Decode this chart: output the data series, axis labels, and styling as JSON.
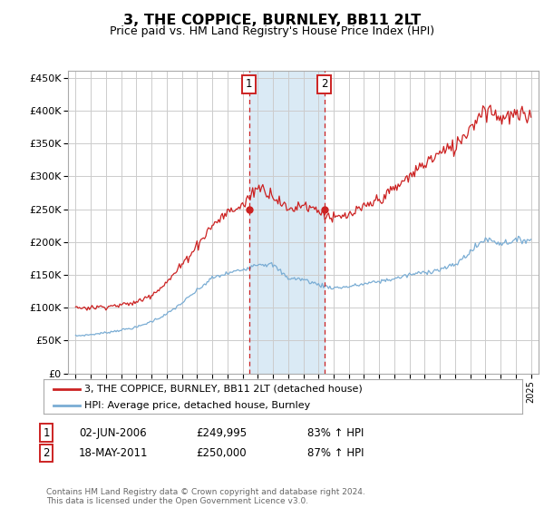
{
  "title": "3, THE COPPICE, BURNLEY, BB11 2LT",
  "subtitle": "Price paid vs. HM Land Registry's House Price Index (HPI)",
  "hpi_color": "#7aadd4",
  "price_color": "#cc2222",
  "point1_date_x": 2006.42,
  "point1_price": 249995,
  "point2_date_x": 2011.38,
  "point2_price": 250000,
  "shade_start": 2006.42,
  "shade_end": 2011.38,
  "shade_color": "#daeaf5",
  "ylim": [
    0,
    460000
  ],
  "xlim": [
    1994.5,
    2025.5
  ],
  "yticks": [
    0,
    50000,
    100000,
    150000,
    200000,
    250000,
    300000,
    350000,
    400000,
    450000
  ],
  "ytick_labels": [
    "£0",
    "£50K",
    "£100K",
    "£150K",
    "£200K",
    "£250K",
    "£300K",
    "£350K",
    "£400K",
    "£450K"
  ],
  "xtick_years": [
    1995,
    1996,
    1997,
    1998,
    1999,
    2000,
    2001,
    2002,
    2003,
    2004,
    2005,
    2006,
    2007,
    2008,
    2009,
    2010,
    2011,
    2012,
    2013,
    2014,
    2015,
    2016,
    2017,
    2018,
    2019,
    2020,
    2021,
    2022,
    2023,
    2024,
    2025
  ],
  "legend_label_price": "3, THE COPPICE, BURNLEY, BB11 2LT (detached house)",
  "legend_label_hpi": "HPI: Average price, detached house, Burnley",
  "annotation1_label": "1",
  "annotation1_date": "02-JUN-2006",
  "annotation1_price": "£249,995",
  "annotation1_hpi": "83% ↑ HPI",
  "annotation2_label": "2",
  "annotation2_date": "18-MAY-2011",
  "annotation2_price": "£250,000",
  "annotation2_hpi": "87% ↑ HPI",
  "footer": "Contains HM Land Registry data © Crown copyright and database right 2024.\nThis data is licensed under the Open Government Licence v3.0.",
  "background_color": "#ffffff",
  "grid_color": "#cccccc",
  "hpi_base": {
    "1995": 57000,
    "1996": 59000,
    "1997": 62000,
    "1998": 66000,
    "1999": 70000,
    "2000": 79000,
    "2001": 90000,
    "2002": 107000,
    "2003": 126000,
    "2004": 145000,
    "2005": 152000,
    "2006": 158000,
    "2007": 167000,
    "2008": 165000,
    "2009": 145000,
    "2010": 143000,
    "2011": 135000,
    "2012": 130000,
    "2013": 132000,
    "2014": 136000,
    "2015": 140000,
    "2016": 144000,
    "2017": 150000,
    "2018": 154000,
    "2019": 158000,
    "2020": 165000,
    "2021": 185000,
    "2022": 205000,
    "2023": 198000,
    "2024": 202000,
    "2025": 204000
  },
  "price_base": {
    "1995": 100000,
    "1996": 100000,
    "1997": 102000,
    "1998": 104000,
    "1999": 108000,
    "2000": 120000,
    "2001": 138000,
    "2002": 165000,
    "2003": 195000,
    "2004": 225000,
    "2005": 245000,
    "2006": 255000,
    "2007": 285000,
    "2008": 272000,
    "2009": 248000,
    "2010": 258000,
    "2011": 248000,
    "2012": 235000,
    "2013": 240000,
    "2014": 252000,
    "2015": 265000,
    "2016": 280000,
    "2017": 300000,
    "2018": 320000,
    "2019": 335000,
    "2020": 345000,
    "2021": 375000,
    "2022": 405000,
    "2023": 390000,
    "2024": 392000,
    "2025": 390000
  }
}
